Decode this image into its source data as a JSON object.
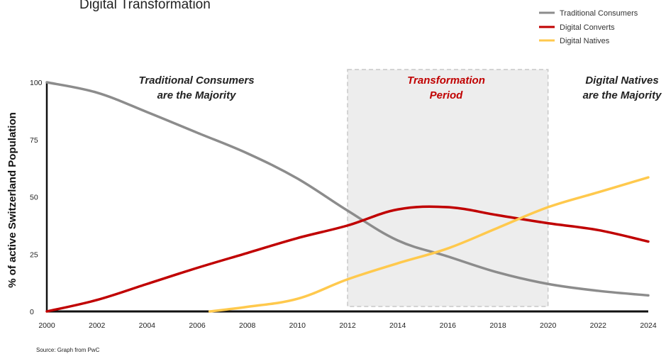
{
  "chart_data": {
    "type": "line",
    "title": "Digital Transformation",
    "xlabel": "",
    "ylabel": "% of active Switzerland Population",
    "x": [
      2000,
      2002,
      2004,
      2006,
      2008,
      2010,
      2012,
      2014,
      2016,
      2018,
      2020,
      2022,
      2024
    ],
    "xlim": [
      2000,
      2024
    ],
    "ylim": [
      0,
      100
    ],
    "y_ticks": [
      0,
      25,
      50,
      75,
      100
    ],
    "x_ticks": [
      "2000",
      "2002",
      "2004",
      "2006",
      "2008",
      "2010",
      "2012",
      "2014",
      "2016",
      "2018",
      "2020",
      "2022",
      "2024"
    ],
    "grid": false,
    "legend_position": "top-right",
    "series": [
      {
        "name": "Traditional Consumers",
        "color": "#8c8c8c",
        "points": [
          [
            2000,
            100
          ],
          [
            2002,
            95.5
          ],
          [
            2004,
            87
          ],
          [
            2006,
            78
          ],
          [
            2008,
            69
          ],
          [
            2010,
            58
          ],
          [
            2012,
            44
          ],
          [
            2014,
            31
          ],
          [
            2016,
            24
          ],
          [
            2018,
            17
          ],
          [
            2020,
            12
          ],
          [
            2022,
            9
          ],
          [
            2024,
            7
          ]
        ]
      },
      {
        "name": "Digital Converts",
        "color": "#c00000",
        "points": [
          [
            2000,
            0
          ],
          [
            2002,
            5
          ],
          [
            2004,
            12
          ],
          [
            2006,
            19
          ],
          [
            2008,
            25.5
          ],
          [
            2010,
            32
          ],
          [
            2012,
            37.5
          ],
          [
            2014,
            44.5
          ],
          [
            2016,
            45.5
          ],
          [
            2018,
            42
          ],
          [
            2020,
            38.5
          ],
          [
            2022,
            35.5
          ],
          [
            2024,
            30.5
          ]
        ]
      },
      {
        "name": "Digital Natives",
        "color": "#ffc94d",
        "points": [
          [
            2006.5,
            0
          ],
          [
            2008,
            2
          ],
          [
            2010,
            5.5
          ],
          [
            2012,
            14
          ],
          [
            2014,
            21
          ],
          [
            2016,
            27.5
          ],
          [
            2018,
            36.5
          ],
          [
            2020,
            45.5
          ],
          [
            2022,
            52
          ],
          [
            2024,
            58.5
          ]
        ]
      }
    ],
    "highlight_region": {
      "x_range": [
        2012,
        2020
      ],
      "fill": "#ededed",
      "border": "#c8c8c8"
    },
    "annotations": [
      {
        "line1": "Traditional Consumers",
        "line2": "are the Majority",
        "color": "#222222"
      },
      {
        "line1": "Transformation",
        "line2": "Period",
        "color": "#c00000"
      },
      {
        "line1": "Digital Natives",
        "line2": "are the Majority",
        "color": "#222222"
      }
    ],
    "source": "Source: Graph from PwC"
  }
}
